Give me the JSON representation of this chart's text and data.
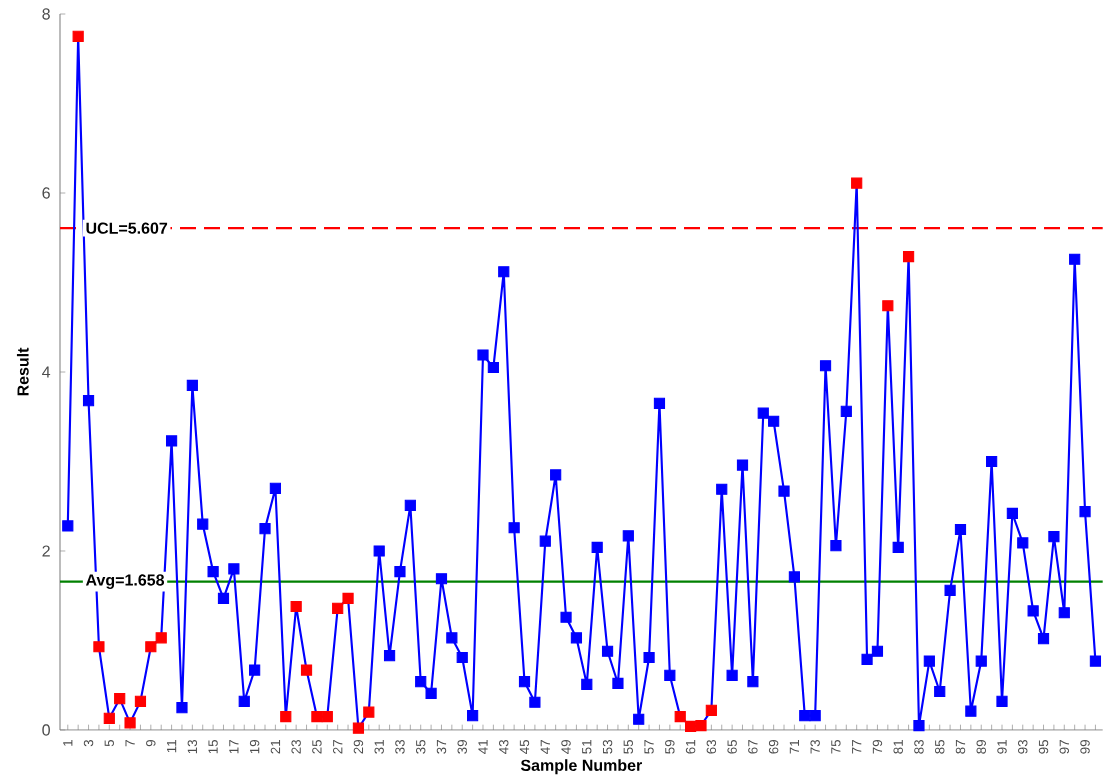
{
  "chart_data": {
    "type": "line",
    "xlabel": "Sample Number",
    "ylabel": "Result",
    "categories": [
      "1",
      null,
      "3",
      null,
      "5",
      null,
      "7",
      null,
      "9",
      null,
      "11",
      null,
      "13",
      null,
      "15",
      null,
      "17",
      null,
      "19",
      null,
      "21",
      null,
      "23",
      null,
      "25",
      null,
      "27",
      null,
      "29",
      null,
      "31",
      null,
      "33",
      null,
      "35",
      null,
      "37",
      null,
      "39",
      null,
      "41",
      null,
      "43",
      null,
      "45",
      null,
      "47",
      null,
      "49",
      null,
      "51",
      null,
      "53",
      null,
      "55",
      null,
      "57",
      null,
      "59",
      null,
      "61",
      null,
      "63",
      null,
      "65",
      null,
      "67",
      null,
      "69",
      null,
      "71",
      null,
      "73",
      null,
      "75",
      null,
      "77",
      null,
      "79",
      null,
      "81",
      null,
      "83",
      null,
      "85",
      null,
      "87",
      null,
      "89",
      null,
      "91",
      null,
      "93",
      null,
      "95",
      null,
      "97",
      null,
      "99",
      null
    ],
    "series": [
      {
        "color": "#0000ff",
        "values": [
          2.28,
          7.75,
          3.68,
          0.93,
          0.13,
          0.35,
          0.08,
          0.32,
          0.93,
          1.03,
          3.23,
          0.25,
          3.85,
          2.3,
          1.77,
          1.47,
          1.8,
          0.32,
          0.67,
          2.25,
          2.7,
          0.15,
          1.38,
          0.67,
          0.15,
          0.15,
          1.36,
          1.47,
          0.02,
          0.2,
          2.0,
          0.83,
          1.77,
          2.51,
          0.54,
          0.41,
          1.69,
          1.03,
          0.81,
          0.16,
          4.19,
          4.05,
          5.12,
          2.26,
          0.54,
          0.31,
          2.11,
          2.85,
          1.26,
          1.03,
          0.51,
          2.04,
          0.88,
          0.52,
          2.17,
          0.12,
          0.81,
          3.65,
          0.61,
          0.15,
          0.04,
          0.05,
          0.22,
          2.69,
          0.61,
          2.96,
          0.54,
          3.54,
          3.45,
          2.67,
          1.71,
          0.16,
          0.16,
          4.07,
          2.06,
          3.56,
          6.11,
          0.79,
          0.88,
          4.74,
          2.04,
          5.29,
          0.05,
          0.77,
          0.43,
          1.56,
          2.24,
          0.21,
          0.77,
          3.0,
          0.32,
          2.42,
          2.09,
          1.33,
          1.02,
          2.16,
          1.31,
          5.26,
          2.44,
          0.77
        ],
        "colors": [
          "#0000ff",
          "#ff0000",
          "#0000ff",
          "#ff0000",
          "#ff0000",
          "#ff0000",
          "#ff0000",
          "#ff0000",
          "#ff0000",
          "#ff0000",
          "#0000ff",
          "#0000ff",
          "#0000ff",
          "#0000ff",
          "#0000ff",
          "#0000ff",
          "#0000ff",
          "#0000ff",
          "#0000ff",
          "#0000ff",
          "#0000ff",
          "#ff0000",
          "#ff0000",
          "#ff0000",
          "#ff0000",
          "#ff0000",
          "#ff0000",
          "#ff0000",
          "#ff0000",
          "#ff0000",
          "#0000ff",
          "#0000ff",
          "#0000ff",
          "#0000ff",
          "#0000ff",
          "#0000ff",
          "#0000ff",
          "#0000ff",
          "#0000ff",
          "#0000ff",
          "#0000ff",
          "#0000ff",
          "#0000ff",
          "#0000ff",
          "#0000ff",
          "#0000ff",
          "#0000ff",
          "#0000ff",
          "#0000ff",
          "#0000ff",
          "#0000ff",
          "#0000ff",
          "#0000ff",
          "#0000ff",
          "#0000ff",
          "#0000ff",
          "#0000ff",
          "#0000ff",
          "#0000ff",
          "#ff0000",
          "#ff0000",
          "#ff0000",
          "#ff0000",
          "#0000ff",
          "#0000ff",
          "#0000ff",
          "#0000ff",
          "#0000ff",
          "#0000ff",
          "#0000ff",
          "#0000ff",
          "#0000ff",
          "#0000ff",
          "#0000ff",
          "#0000ff",
          "#0000ff",
          "#ff0000",
          "#0000ff",
          "#0000ff",
          "#ff0000",
          "#0000ff",
          "#ff0000",
          "#0000ff",
          "#0000ff",
          "#0000ff",
          "#0000ff",
          "#0000ff",
          "#0000ff",
          "#0000ff",
          "#0000ff",
          "#0000ff",
          "#0000ff",
          "#0000ff",
          "#0000ff",
          "#0000ff",
          "#0000ff",
          "#0000ff",
          "#0000ff",
          "#0000ff",
          "#0000ff"
        ]
      }
    ],
    "ylim": [
      0,
      8
    ],
    "yticks": [
      0,
      2,
      4,
      6,
      8
    ],
    "marker": "square",
    "grid": false,
    "ref_lines": [
      {
        "axis": "y",
        "value": 5.607,
        "label": "UCL=5.607",
        "color": "#ff0000",
        "line_style": "dashed"
      },
      {
        "axis": "y",
        "value": 1.658,
        "label": "Avg=1.658",
        "color": "#008000",
        "line_style": "solid"
      }
    ]
  }
}
